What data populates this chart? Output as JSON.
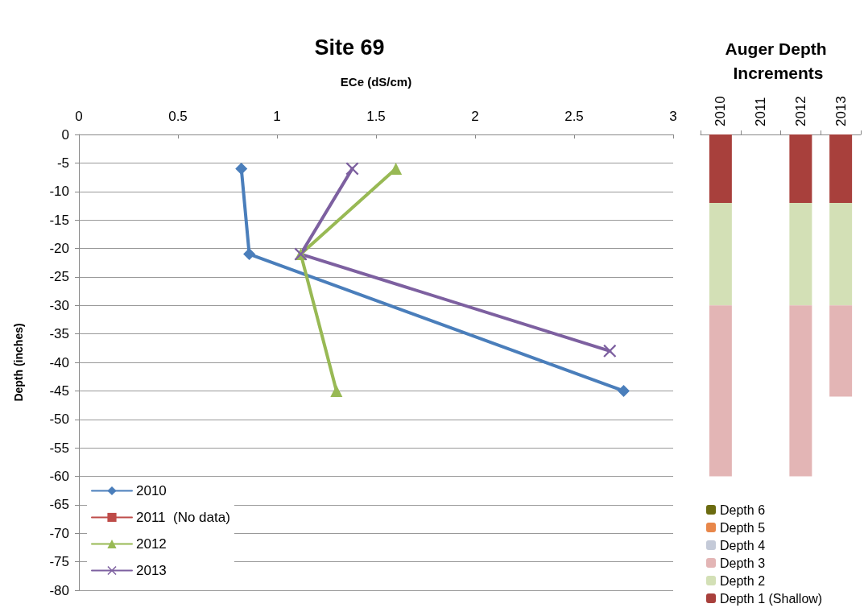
{
  "chart_data": [
    {
      "type": "line",
      "title": "Site 69",
      "xlabel": "ECe (dS/cm)",
      "ylabel": "Depth (inches)",
      "xlim": [
        0,
        3
      ],
      "xticks": [
        0,
        0.5,
        1,
        1.5,
        2,
        2.5,
        3
      ],
      "ylim": [
        -80,
        0
      ],
      "yticks": [
        0,
        -5,
        -10,
        -15,
        -20,
        -25,
        -30,
        -35,
        -40,
        -45,
        -50,
        -55,
        -60,
        -65,
        -70,
        -75,
        -80
      ],
      "grid": "y",
      "legend": "bottom left",
      "series": [
        {
          "name": "2010",
          "color": "#4a7ebb",
          "marker": "diamond",
          "x": [
            0.82,
            0.86,
            2.75
          ],
          "values": [
            -6,
            -21,
            -45
          ]
        },
        {
          "name": "2011  (No data)",
          "color": "#be4b48",
          "marker": "square"
        },
        {
          "name": "2012",
          "color": "#98b954",
          "marker": "triangle",
          "x": [
            1.6,
            1.12,
            1.3
          ],
          "values": [
            -6,
            -21,
            -45
          ]
        },
        {
          "name": "2013",
          "color": "#7d60a0",
          "marker": "cross",
          "x": [
            1.38,
            1.12,
            2.68
          ],
          "values": [
            -6,
            -21,
            -38
          ]
        }
      ]
    },
    {
      "type": "bar",
      "title": "Auger Depth Increments",
      "categories": [
        "2010",
        "2011",
        "2012",
        "2013"
      ],
      "stacked": true,
      "ylim": [
        -80,
        0
      ],
      "tick_labels": "x",
      "legend": "bottom",
      "series": [
        {
          "name": "Depth 1 (Shallow)",
          "color": "#a8403c",
          "values": [
            -12,
            null,
            -12,
            -12
          ]
        },
        {
          "name": "Depth 2",
          "color": "#d3e0b6",
          "values": [
            -18,
            null,
            -18,
            -18
          ]
        },
        {
          "name": "Depth 3",
          "color": "#e3b5b5",
          "values": [
            -30,
            null,
            -30,
            -16
          ]
        },
        {
          "name": "Depth 4",
          "color": "#c4cad8",
          "values": [
            null,
            null,
            null,
            null
          ]
        },
        {
          "name": "Depth 5",
          "color": "#e8874a",
          "values": [
            null,
            null,
            null,
            null
          ]
        },
        {
          "name": "Depth 6",
          "color": "#6b6b10",
          "values": [
            null,
            null,
            null,
            null
          ]
        }
      ]
    }
  ]
}
